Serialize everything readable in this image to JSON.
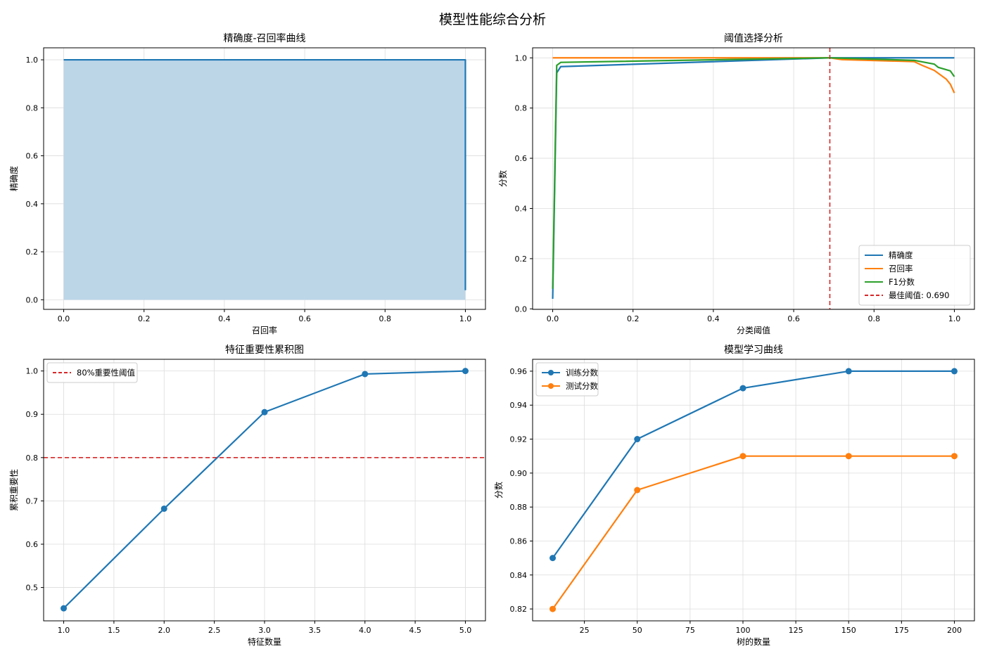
{
  "figure_title": "模型性能综合分析",
  "colors": {
    "blue": "#1f77b4",
    "orange": "#ff7f0e",
    "green": "#2ca02c",
    "red": "#d62728",
    "fill": "#bcd6e8"
  },
  "chart_data": [
    {
      "id": "pr",
      "type": "area",
      "title": "精确度-召回率曲线",
      "xlabel": "召回率",
      "ylabel": "精确度",
      "xlim": [
        -0.05,
        1.05
      ],
      "ylim": [
        -0.04,
        1.05
      ],
      "xticks": [
        0.0,
        0.2,
        0.4,
        0.6,
        0.8,
        1.0
      ],
      "yticks": [
        0.0,
        0.2,
        0.4,
        0.6,
        0.8,
        1.0
      ],
      "tick_decimals": 1,
      "grid": true,
      "legend": null,
      "series": [
        {
          "x": [
            0.0,
            1.0,
            1.0
          ],
          "y": [
            1.0,
            1.0,
            0.04
          ],
          "color": "blue",
          "fill": true,
          "marker": false
        }
      ]
    },
    {
      "id": "threshold",
      "type": "line",
      "title": "阈值选择分析",
      "xlabel": "分类阈值",
      "ylabel": "分数",
      "xlim": [
        -0.05,
        1.05
      ],
      "ylim": [
        -0.002,
        1.04
      ],
      "xticks": [
        0.0,
        0.2,
        0.4,
        0.6,
        0.8,
        1.0
      ],
      "yticks": [
        0.0,
        0.2,
        0.4,
        0.6,
        0.8,
        1.0
      ],
      "tick_decimals": 1,
      "grid": true,
      "legend": "lower-right",
      "series": [
        {
          "name": "精确度",
          "color": "blue",
          "marker": false,
          "x": [
            0.0,
            0.01,
            0.02,
            0.69,
            1.0
          ],
          "y": [
            0.04,
            0.94,
            0.965,
            1.0,
            1.0
          ]
        },
        {
          "name": "召回率",
          "color": "orange",
          "marker": false,
          "x": [
            0.0,
            0.69,
            0.72,
            0.9,
            0.92,
            0.95,
            0.98,
            0.99,
            1.0
          ],
          "y": [
            1.0,
            1.0,
            0.993,
            0.985,
            0.97,
            0.95,
            0.915,
            0.895,
            0.86
          ]
        },
        {
          "name": "F1分数",
          "color": "green",
          "marker": false,
          "x": [
            0.0,
            0.01,
            0.02,
            0.69,
            0.9,
            0.95,
            0.96,
            0.99,
            1.0
          ],
          "y": [
            0.08,
            0.97,
            0.982,
            1.0,
            0.99,
            0.975,
            0.962,
            0.948,
            0.925
          ]
        }
      ],
      "vlines": [
        {
          "x": 0.69,
          "name": "最佳阈值: 0.690",
          "color": "red"
        }
      ]
    },
    {
      "id": "importance",
      "type": "line",
      "title": "特征重要性累积图",
      "xlabel": "特征数量",
      "ylabel": "累积重要性",
      "xlim": [
        0.8,
        5.2
      ],
      "ylim": [
        0.423,
        1.027
      ],
      "xticks": [
        1.0,
        1.5,
        2.0,
        2.5,
        3.0,
        3.5,
        4.0,
        4.5,
        5.0
      ],
      "yticks": [
        0.5,
        0.6,
        0.7,
        0.8,
        0.9,
        1.0
      ],
      "tick_decimals": 1,
      "grid": true,
      "legend": "top-left",
      "series": [
        {
          "color": "blue",
          "marker": true,
          "x": [
            1,
            2,
            3,
            4,
            5
          ],
          "y": [
            0.452,
            0.682,
            0.905,
            0.993,
            1.0
          ]
        }
      ],
      "hlines": [
        {
          "y": 0.8,
          "name": "80%重要性阈值",
          "color": "red"
        }
      ]
    },
    {
      "id": "learning",
      "type": "line",
      "title": "模型学习曲线",
      "xlabel": "树的数量",
      "ylabel": "分数",
      "xlim": [
        0.5,
        209.5
      ],
      "ylim": [
        0.813,
        0.967
      ],
      "xticks": [
        25,
        50,
        75,
        100,
        125,
        150,
        175,
        200
      ],
      "yticks": [
        0.82,
        0.84,
        0.86,
        0.88,
        0.9,
        0.92,
        0.94,
        0.96
      ],
      "tick_decimals": 2,
      "grid": true,
      "legend": "top-left",
      "series": [
        {
          "name": "训练分数",
          "color": "blue",
          "marker": true,
          "x": [
            10,
            50,
            100,
            150,
            200
          ],
          "y": [
            0.85,
            0.92,
            0.95,
            0.96,
            0.96
          ]
        },
        {
          "name": "测试分数",
          "color": "orange",
          "marker": true,
          "x": [
            10,
            50,
            100,
            150,
            200
          ],
          "y": [
            0.82,
            0.89,
            0.91,
            0.91,
            0.91
          ]
        }
      ]
    }
  ]
}
